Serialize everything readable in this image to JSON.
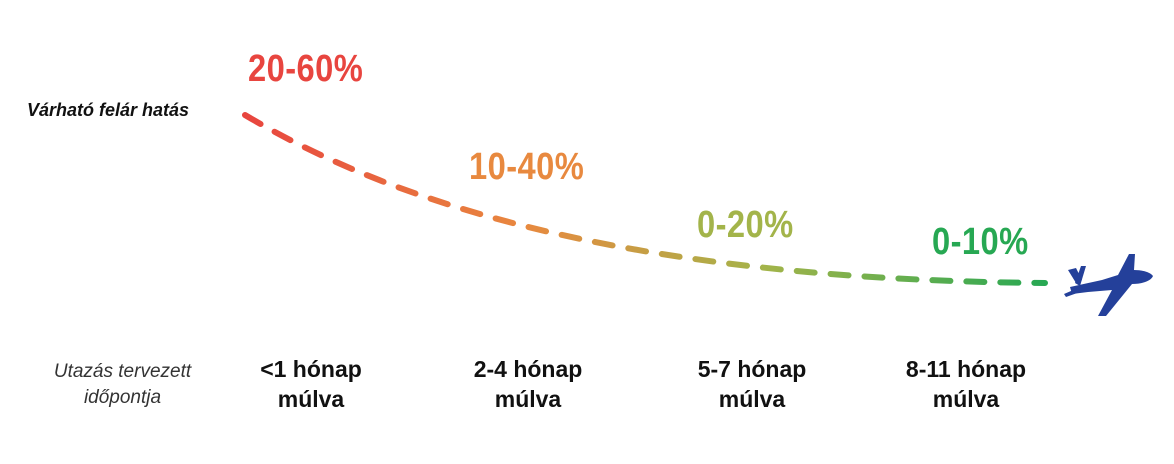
{
  "y_label": "Várható felár hatás",
  "x_label": "Utazás tervezett időpontja",
  "stages": [
    {
      "range": "20-60%",
      "period_line1": "<1 hónap",
      "period_line2": "múlva",
      "color": "#e8453f"
    },
    {
      "range": "10-40%",
      "period_line1": "2-4 hónap",
      "period_line2": "múlva",
      "color": "#e8893f"
    },
    {
      "range": "0-20%",
      "period_line1": "5-7 hónap",
      "period_line2": "múlva",
      "color": "#a3b44a"
    },
    {
      "range": "0-10%",
      "period_line1": "8-11 hónap",
      "period_line2": "múlva",
      "color": "#27a853"
    }
  ],
  "icons": {
    "end": "airplane-icon"
  },
  "plane_color": "#24409a"
}
